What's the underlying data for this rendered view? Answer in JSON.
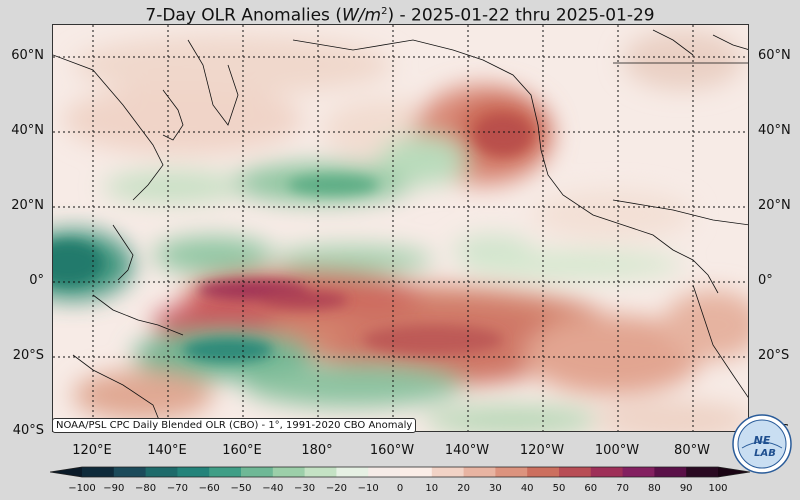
{
  "title": {
    "prefix": "7-Day OLR Anomalies (",
    "unit_base": "W/m",
    "unit_exp": "2",
    "suffix": ") - 2025-01-22 thru 2025-01-29"
  },
  "map": {
    "lon_labels": [
      "120°E",
      "140°E",
      "160°E",
      "180°",
      "160°W",
      "140°W",
      "120°W",
      "100°W",
      "80°W"
    ],
    "lat_labels": [
      "60°N",
      "40°N",
      "20°N",
      "0°",
      "20°S",
      "40°S"
    ],
    "gridlines": "dotted",
    "anomaly_regions": [
      {
        "label": "positive",
        "area": "central/eastern equatorial Pacific to South Pacific",
        "color": "#c8584f"
      },
      {
        "label": "positive",
        "area": "off Pacific Northwest coast",
        "color": "#c55a4e"
      },
      {
        "label": "strong positive",
        "area": "equatorial western Pacific near 160°E",
        "color": "#9c2f52"
      },
      {
        "label": "negative",
        "area": "Maritime Continent / Philippines",
        "color": "#2f8a79"
      },
      {
        "label": "negative",
        "area": "South Pacific near 20°S",
        "color": "#58a88a"
      },
      {
        "label": "negative",
        "area": "North Pacific 20–30°N",
        "color": "#5fae86"
      }
    ]
  },
  "credit": "NOAA/PSL CPC Daily Blended OLR (CBO) - 1°, 1991-2020 CBO Anomaly",
  "colorbar": {
    "ticks": [
      "−100",
      "−90",
      "−80",
      "−70",
      "−60",
      "−50",
      "−40",
      "−30",
      "−20",
      "−10",
      "0",
      "10",
      "20",
      "30",
      "40",
      "50",
      "60",
      "70",
      "80",
      "90",
      "100"
    ],
    "min": -100,
    "max": 100,
    "colors": [
      "#0e2a3a",
      "#1b4a5a",
      "#1d6a6a",
      "#23837a",
      "#3f9e86",
      "#6fb896",
      "#9ccfa9",
      "#c4e2c4",
      "#e6f1e4",
      "#f6ece8",
      "#fbeee8",
      "#f2d3c6",
      "#e8b4a2",
      "#dc937e",
      "#cc6f5e",
      "#b84d55",
      "#9e2f58",
      "#832060",
      "#5a1048",
      "#2a0a22"
    ]
  },
  "logo": {
    "top": "NE",
    "bottom": "LAB"
  }
}
